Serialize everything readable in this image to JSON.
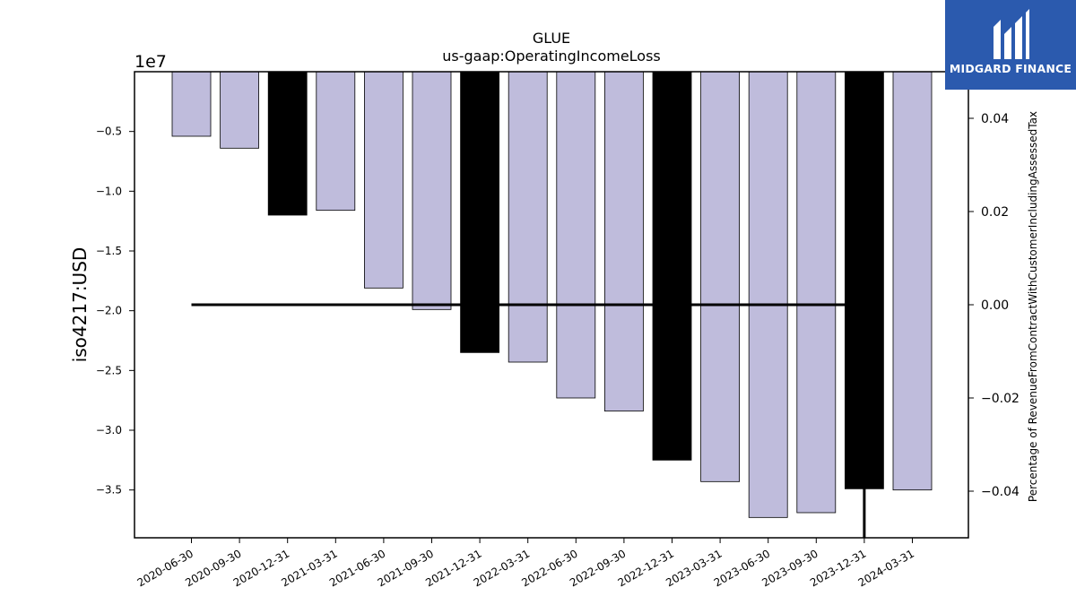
{
  "chart_data": {
    "type": "bar",
    "title": "GLUE",
    "subtitle": "us-gaap:OperatingIncomeLoss",
    "ylabel": "iso4217:USD",
    "y2label": "Percentage of RevenueFromContractWithCustomerIncludingAssessedTax",
    "offset_label": "1e7",
    "categories": [
      "2020-06-30",
      "2020-09-30",
      "2020-12-31",
      "2021-03-31",
      "2021-06-30",
      "2021-09-30",
      "2021-12-31",
      "2022-03-31",
      "2022-06-30",
      "2022-09-30",
      "2022-12-31",
      "2023-03-31",
      "2023-06-30",
      "2023-09-30",
      "2023-12-31",
      "2024-03-31"
    ],
    "values": [
      -5400000,
      -6400000,
      -12000000,
      -11600000,
      -18100000,
      -19900000,
      -23500000,
      -24300000,
      -27300000,
      -28400000,
      -32500000,
      -34300000,
      -37300000,
      -36900000,
      -34900000,
      -35000000
    ],
    "highlight": [
      false,
      false,
      true,
      false,
      false,
      false,
      true,
      false,
      false,
      false,
      true,
      false,
      false,
      false,
      true,
      false
    ],
    "ylim": [
      -39000000,
      0
    ],
    "yticks": [
      -5000000,
      -10000000,
      -15000000,
      -20000000,
      -25000000,
      -30000000,
      -35000000
    ],
    "ytick_labels": [
      "−0.5",
      "−1.0",
      "−1.5",
      "−2.0",
      "−2.5",
      "−3.0",
      "−3.5"
    ],
    "y2lim": [
      -0.05,
      0.05
    ],
    "y2ticks": [
      0.04,
      0.02,
      0.0,
      -0.02,
      -0.04
    ],
    "y2tick_labels": [
      "0.04",
      "0.02",
      "0.00",
      "−0.02",
      "−0.04"
    ],
    "line": {
      "start_index": 0,
      "end_index": 14,
      "value": 0.0,
      "drop_index": 14,
      "drop_to": -0.05
    },
    "colors": {
      "bar": "#bfbcdc",
      "highlight": "#000000",
      "edge": "#000000",
      "line": "#000000"
    }
  },
  "logo": {
    "text": "MIDGARD FINANCE",
    "bg": "#2b5aae"
  }
}
